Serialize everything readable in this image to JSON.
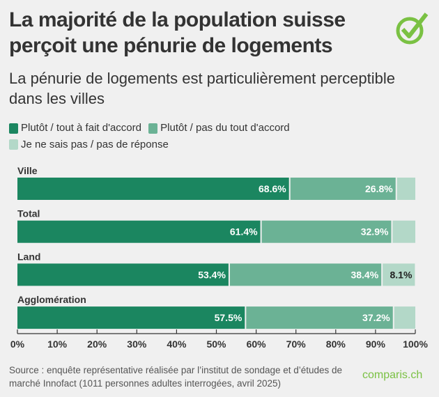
{
  "header": {
    "title": "La majorité de la population suisse perçoit une pénurie de logements",
    "subtitle": "La pénurie de logements est particulièrement perceptible dans les villes",
    "logo_icon": "check-circle-icon"
  },
  "chart_data": {
    "type": "bar",
    "orientation": "horizontal",
    "stacked": true,
    "categories": [
      "Ville",
      "Total",
      "Land",
      "Agglomération"
    ],
    "series": [
      {
        "name": "Plutôt / tout à fait d'accord",
        "color": "#1b8660",
        "values": [
          68.6,
          61.4,
          53.4,
          57.5
        ],
        "labels": [
          "68.6%",
          "61.4%",
          "53.4%",
          "57.5%"
        ]
      },
      {
        "name": "Plutôt / pas du tout d'accord",
        "color": "#6bb295",
        "values": [
          26.8,
          32.9,
          38.4,
          37.2
        ],
        "labels": [
          "26.8%",
          "32.9%",
          "38.4%",
          "37.2%"
        ]
      },
      {
        "name": "Je ne sais pas / pas de réponse",
        "color": "#b3d8c8",
        "values": [
          4.6,
          5.7,
          8.1,
          5.3
        ],
        "labels": [
          null,
          null,
          "8.1%",
          null
        ]
      }
    ],
    "xlim": [
      0,
      100
    ],
    "xticks": [
      "0%",
      "10%",
      "20%",
      "30%",
      "40%",
      "50%",
      "60%",
      "70%",
      "80%",
      "90%",
      "100%"
    ],
    "legend": "top"
  },
  "footer": {
    "source": "Source : enquête représentative réalisée par l’institut de sondage et d’études de marché Innofact (1011 personnes adultes interrogées, avril 2025)",
    "brand": "comparis.ch"
  }
}
